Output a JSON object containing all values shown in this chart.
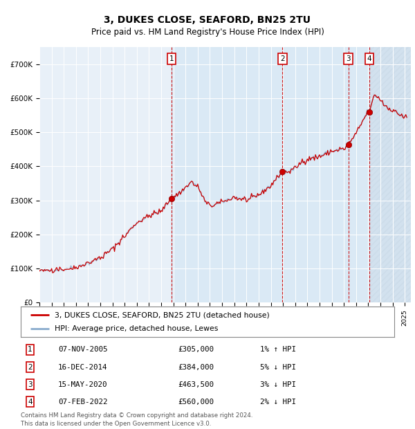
{
  "title": "3, DUKES CLOSE, SEAFORD, BN25 2TU",
  "subtitle": "Price paid vs. HM Land Registry's House Price Index (HPI)",
  "hpi_color": "#88aacc",
  "price_color": "#cc0000",
  "sale_marker_color": "#cc0000",
  "plot_bg": "#e8f0f8",
  "shade_color": "#d0e4f4",
  "ylim": [
    0,
    750000
  ],
  "yticks": [
    0,
    100000,
    200000,
    300000,
    400000,
    500000,
    600000,
    700000
  ],
  "ytick_labels": [
    "£0",
    "£100K",
    "£200K",
    "£300K",
    "£400K",
    "£500K",
    "£600K",
    "£700K"
  ],
  "xstart": 1995,
  "xend": 2025.5,
  "legend_line1": "3, DUKES CLOSE, SEAFORD, BN25 2TU (detached house)",
  "legend_line2": "HPI: Average price, detached house, Lewes",
  "sales": [
    {
      "num": 1,
      "date": "07-NOV-2005",
      "price": 305000,
      "rel": "1% ↑ HPI",
      "year": 2005.85
    },
    {
      "num": 2,
      "date": "16-DEC-2014",
      "price": 384000,
      "rel": "5% ↓ HPI",
      "year": 2014.96
    },
    {
      "num": 3,
      "date": "15-MAY-2020",
      "price": 463500,
      "rel": "3% ↓ HPI",
      "year": 2020.37
    },
    {
      "num": 4,
      "date": "07-FEB-2022",
      "price": 560000,
      "rel": "2% ↓ HPI",
      "year": 2022.1
    }
  ],
  "footnote1": "Contains HM Land Registry data © Crown copyright and database right 2024.",
  "footnote2": "This data is licensed under the Open Government Licence v3.0."
}
